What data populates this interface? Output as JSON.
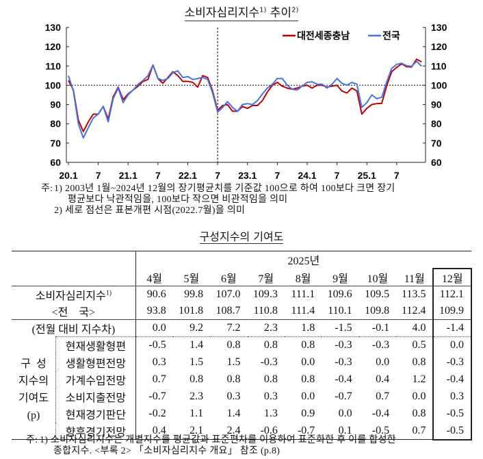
{
  "chart": {
    "title": "소비자심리지수",
    "title_sup1": "1)",
    "title_word2": "추이",
    "title_sup2": "2)",
    "notes": {
      "prefix": "주:",
      "note1_line1": "1) 2003년 1월~2024년 12월의 장기평균치를 기준값 100으로 하여 100보다 크면 장기",
      "note1_line2": "평균보다 낙관적임을, 100보다 작으면 비관적임을 의미",
      "note2": "2) 세로 점선은 표본개편 시점(2022.7월)을 의미"
    }
  },
  "chart_data": {
    "type": "line",
    "title": "소비자심리지수 추이",
    "x_start": "2020.1",
    "x_end": "2025.12",
    "x_tick_labels": [
      "20.1",
      "7",
      "21.1",
      "7",
      "22.1",
      "7",
      "23.1",
      "7",
      "24.1",
      "7",
      "25.1",
      "7"
    ],
    "ylim": [
      60,
      130
    ],
    "y_ticks": [
      60,
      70,
      80,
      90,
      100,
      110,
      120,
      130
    ],
    "secondary_y_axis": true,
    "reference_line": 100,
    "vertical_dashed_line": "2022.7",
    "legend_position": "top-right",
    "colors": {
      "대전세종충남": "#c00000",
      "전국": "#4472e8"
    },
    "series": [
      {
        "name": "대전세종충남",
        "values": [
          102.5,
          97.5,
          82,
          76,
          81,
          85,
          85,
          89,
          82.5,
          94,
          99,
          92.5,
          95.5,
          97.5,
          99.5,
          102,
          103,
          110.5,
          103.5,
          101,
          104,
          107,
          105,
          102,
          102,
          101.5,
          99,
          105,
          104,
          97,
          87,
          89.5,
          90,
          86.5,
          86.5,
          89,
          88,
          89.5,
          89.5,
          92,
          96.5,
          100,
          101.5,
          99.5,
          98.5,
          98,
          98.5,
          99.5,
          100,
          98.5,
          100,
          100,
          99,
          99.5,
          100,
          97,
          96,
          98.5,
          97,
          85,
          88,
          90,
          90.5,
          90.6,
          99.8,
          107.0,
          109.3,
          111.1,
          109.6,
          109.5,
          113.5,
          112.1
        ]
      },
      {
        "name": "전국",
        "values": [
          105,
          97,
          80,
          72.7,
          78,
          83,
          85,
          89,
          81,
          93,
          98.5,
          91,
          95,
          97.5,
          100.5,
          102.5,
          105,
          110.5,
          103.5,
          102.5,
          103.5,
          106.5,
          107.5,
          104,
          104.5,
          103,
          103.5,
          104,
          103,
          96,
          86,
          88.5,
          91.5,
          88.5,
          86.5,
          90,
          90.5,
          90,
          92,
          95.5,
          98.5,
          100.5,
          103.5,
          103.5,
          100,
          98,
          97.5,
          99.5,
          101.5,
          101.8,
          100.5,
          100.5,
          98.5,
          100.5,
          103.5,
          101,
          100,
          101.5,
          100.5,
          88.5,
          91,
          95,
          93,
          93.8,
          101.8,
          108.7,
          110.8,
          111.4,
          110.1,
          109.8,
          112.4,
          109.9
        ]
      }
    ]
  },
  "table": {
    "title": "구성지수의 기여도",
    "year": "2025년",
    "months": [
      "4월",
      "5월",
      "6월",
      "7월",
      "8월",
      "9월",
      "10월",
      "11월",
      "12월"
    ],
    "csi_label": "소비자심리지수",
    "csi_sup": "1)",
    "csi": [
      "90.6",
      "99.8",
      "107.0",
      "109.3",
      "111.1",
      "109.6",
      "109.5",
      "113.5",
      "112.1"
    ],
    "national_label": "<전    국>",
    "national": [
      "93.8",
      "101.8",
      "108.7",
      "110.8",
      "111.4",
      "110.1",
      "109.8",
      "112.4",
      "109.9"
    ],
    "change_label": "(전월 대비 지수차)",
    "change": [
      "0.0",
      "9.2",
      "7.2",
      "2.3",
      "1.8",
      "-1.5",
      "-0.1",
      "4.0",
      "-1.4"
    ],
    "group_label": [
      "구  성",
      "지수의",
      "기여도",
      "(p)"
    ],
    "components": [
      {
        "label": "현재생활형편",
        "values": [
          "-0.5",
          "1.4",
          "0.8",
          "0.8",
          "0.8",
          "-0.3",
          "-0.3",
          "0.5",
          "0.0"
        ]
      },
      {
        "label": "생활형편전망",
        "values": [
          "0.3",
          "1.5",
          "1.5",
          "-0.3",
          "0.0",
          "-0.3",
          "0.0",
          "0.8",
          "-0.3"
        ]
      },
      {
        "label": "가계수입전망",
        "values": [
          "0.7",
          "0.8",
          "0.8",
          "0.8",
          "0.8",
          "-0.4",
          "0.4",
          "1.2",
          "-0.4"
        ]
      },
      {
        "label": "소비지출전망",
        "values": [
          "-0.7",
          "2.3",
          "0.3",
          "0.3",
          "0.0",
          "-0.7",
          "0.7",
          "0.0",
          "0.3"
        ]
      },
      {
        "label": "현재경기판단",
        "values": [
          "-0.2",
          "1.1",
          "1.4",
          "1.3",
          "0.9",
          "0.0",
          "-0.4",
          "0.8",
          "-0.5"
        ]
      },
      {
        "label": "향후경기전망",
        "values": [
          "0.4",
          "2.1",
          "2.4",
          "-0.6",
          "-0.7",
          "0.1",
          "-0.5",
          "0.7",
          "-0.5"
        ]
      }
    ],
    "note_prefix": "주:",
    "note_line1": "1) 소비자심리지수는 개별지수를 평균값과 표준편차를 이용하여 표준화한 후 이를 합성한",
    "note_line2": "종합지수. <부록 2> 「소비자심리지수 개요」 참조 (p.8)"
  }
}
